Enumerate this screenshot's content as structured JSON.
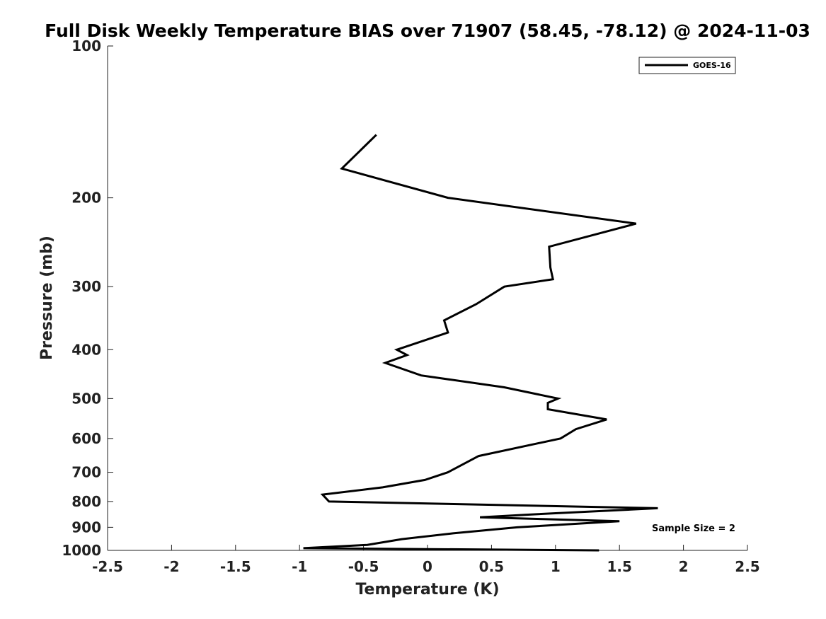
{
  "chart_data": {
    "type": "line",
    "title": "Full Disk Weekly Temperature BIAS over 71907 (58.45, -78.12) @ 2024-11-03",
    "xlabel": "Temperature (K)",
    "ylabel": "Pressure (mb)",
    "xlim": [
      -2.5,
      2.5
    ],
    "ylim": [
      100,
      1000
    ],
    "y_scale": "log",
    "y_reversed": true,
    "grid": false,
    "legend_placement": "top-right",
    "x_ticks": [
      -2.5,
      -2,
      -1.5,
      -1,
      -0.5,
      0,
      0.5,
      1,
      1.5,
      2,
      2.5
    ],
    "x_tick_labels": [
      "-2.5",
      "-2",
      "-1.5",
      "-1",
      "-0.5",
      "0",
      "0.5",
      "1",
      "1.5",
      "2",
      "2.5"
    ],
    "y_ticks": [
      100,
      200,
      300,
      400,
      500,
      600,
      700,
      800,
      900,
      1000
    ],
    "y_tick_labels": [
      "100",
      "200",
      "300",
      "400",
      "500",
      "600",
      "700",
      "800",
      "900",
      "1000"
    ],
    "series": [
      {
        "name": "GOES-16",
        "color": "#000000",
        "points": [
          {
            "p": 150,
            "t": -0.4
          },
          {
            "p": 175,
            "t": -0.67
          },
          {
            "p": 200,
            "t": 0.16
          },
          {
            "p": 225,
            "t": 1.63
          },
          {
            "p": 250,
            "t": 0.95
          },
          {
            "p": 275,
            "t": 0.96
          },
          {
            "p": 290,
            "t": 0.98
          },
          {
            "p": 300,
            "t": 0.6
          },
          {
            "p": 325,
            "t": 0.38
          },
          {
            "p": 350,
            "t": 0.13
          },
          {
            "p": 370,
            "t": 0.16
          },
          {
            "p": 400,
            "t": -0.24
          },
          {
            "p": 410,
            "t": -0.16
          },
          {
            "p": 425,
            "t": -0.33
          },
          {
            "p": 450,
            "t": -0.05
          },
          {
            "p": 475,
            "t": 0.6
          },
          {
            "p": 500,
            "t": 1.02
          },
          {
            "p": 510,
            "t": 0.94
          },
          {
            "p": 525,
            "t": 0.94
          },
          {
            "p": 550,
            "t": 1.4
          },
          {
            "p": 575,
            "t": 1.16
          },
          {
            "p": 600,
            "t": 1.04
          },
          {
            "p": 650,
            "t": 0.4
          },
          {
            "p": 700,
            "t": 0.16
          },
          {
            "p": 725,
            "t": -0.02
          },
          {
            "p": 750,
            "t": -0.35
          },
          {
            "p": 775,
            "t": -0.82
          },
          {
            "p": 800,
            "t": -0.77
          },
          {
            "p": 825,
            "t": 1.8
          },
          {
            "p": 850,
            "t": 0.76
          },
          {
            "p": 860,
            "t": 0.41
          },
          {
            "p": 875,
            "t": 1.5
          },
          {
            "p": 900,
            "t": 0.7
          },
          {
            "p": 925,
            "t": 0.2
          },
          {
            "p": 950,
            "t": -0.2
          },
          {
            "p": 975,
            "t": -0.47
          },
          {
            "p": 990,
            "t": -0.97
          },
          {
            "p": 1000,
            "t": 1.34
          }
        ]
      }
    ],
    "annotations": [
      {
        "text": "Sample Size = 2"
      }
    ]
  }
}
